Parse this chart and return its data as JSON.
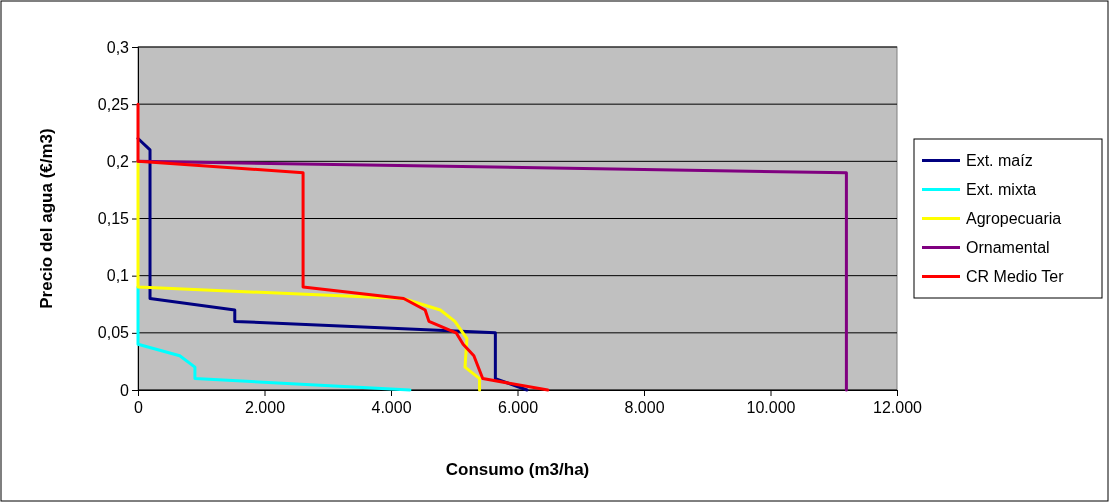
{
  "chart_data": {
    "type": "line",
    "xlabel": "Consumo (m3/ha)",
    "ylabel": "Precio del agua (€/m3)",
    "xlim": [
      0,
      12000
    ],
    "xticks": [
      0,
      {
        "value": 2000,
        "label": "2.000"
      },
      {
        "value": 4000,
        "label": "4.000"
      },
      {
        "value": 6000,
        "label": "6.000"
      },
      {
        "value": 8000,
        "label": "8.000"
      },
      {
        "value": 10000,
        "label": "10.000"
      },
      {
        "value": 12000,
        "label": "12.000"
      }
    ],
    "ylim": [
      0,
      0.3
    ],
    "yticks": [
      0,
      {
        "value": 0.05,
        "label": "0,05"
      },
      {
        "value": 0.1,
        "label": "0,1"
      },
      {
        "value": 0.15,
        "label": "0,15"
      },
      {
        "value": 0.2,
        "label": "0,2"
      },
      {
        "value": 0.25,
        "label": "0,25"
      },
      {
        "value": 0.3,
        "label": "0,3"
      }
    ],
    "grid": "y",
    "legend": "right",
    "marker": "none",
    "line_style": "solid",
    "series": [
      {
        "name": "Ext. maíz",
        "color": "#000080",
        "x": [
          0,
          190,
          190,
          1530,
          1530,
          5650,
          5650,
          6150
        ],
        "values": [
          0.22,
          0.21,
          0.08,
          0.07,
          0.06,
          0.05,
          0.01,
          0
        ]
      },
      {
        "name": "Ext. mixta",
        "color": "#00ffff",
        "x": [
          0,
          0,
          660,
          900,
          900,
          4300
        ],
        "values": [
          0.09,
          0.04,
          0.03,
          0.02,
          0.01,
          0
        ]
      },
      {
        "name": "Agropecuaria",
        "color": "#ffff00",
        "x": [
          0,
          0,
          4190,
          4780,
          5010,
          5200,
          5170,
          5400,
          5400
        ],
        "values": [
          0.2,
          0.09,
          0.08,
          0.07,
          0.06,
          0.045,
          0.02,
          0.01,
          0
        ]
      },
      {
        "name": "Ornamental",
        "color": "#800080",
        "x": [
          0,
          11200,
          11200
        ],
        "values": [
          0.2,
          0.19,
          0
        ]
      },
      {
        "name": "CR Medio Ter",
        "color": "#ff0000",
        "x": [
          0,
          0,
          2610,
          2610,
          4200,
          4540,
          4600,
          5030,
          5140,
          5310,
          5450,
          6480
        ],
        "values": [
          0.25,
          0.2,
          0.19,
          0.09,
          0.08,
          0.07,
          0.06,
          0.05,
          0.04,
          0.03,
          0.01,
          0
        ]
      }
    ]
  }
}
